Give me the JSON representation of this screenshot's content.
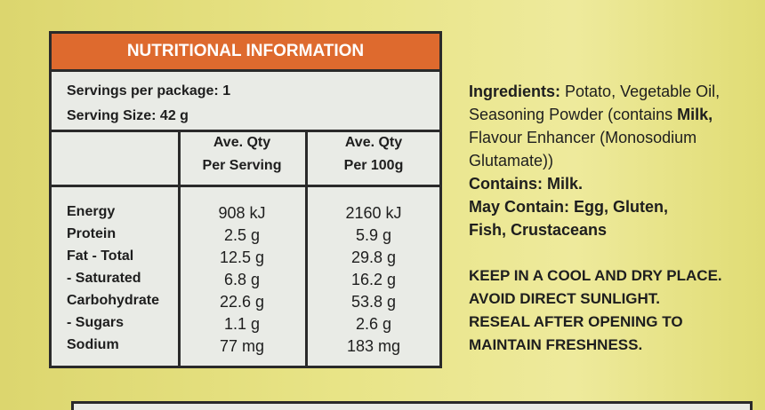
{
  "nutrition": {
    "title": "NUTRITIONAL INFORMATION",
    "servings_per_package": "Servings per package: 1",
    "serving_size": "Serving Size: 42 g",
    "headers": [
      [
        "Ave. Qty",
        "Per Serving"
      ],
      [
        "Ave. Qty",
        "Per 100g"
      ]
    ],
    "rows": [
      [
        "Energy",
        "908 kJ",
        "2160 kJ"
      ],
      [
        "Protein",
        "2.5 g",
        "5.9 g"
      ],
      [
        "Fat - Total",
        "12.5 g",
        "29.8 g"
      ],
      [
        "- Saturated",
        "6.8 g",
        "16.2 g"
      ],
      [
        "Carbohydrate",
        "22.6 g",
        "53.8 g"
      ],
      [
        "- Sugars",
        "1.1 g",
        "2.6 g"
      ],
      [
        "Sodium",
        "77 mg",
        "183 mg"
      ]
    ]
  },
  "ingredients": {
    "label": "Ingredients:",
    "text_1": "Potato, Vegetable Oil, Seasoning Powder (contains",
    "milk": "Milk,",
    "text_2": "Flavour Enhancer (Monosodium Glutamate))"
  },
  "contains": "Contains: Milk.",
  "may_contain": "May Contain: Egg, Gluten, Fish, Crustaceans",
  "storage": [
    "KEEP IN A COOL AND DRY PLACE.",
    "AVOID DIRECT SUNLIGHT.",
    "RESEAL AFTER OPENING TO",
    "MAINTAIN FRESHNESS."
  ]
}
